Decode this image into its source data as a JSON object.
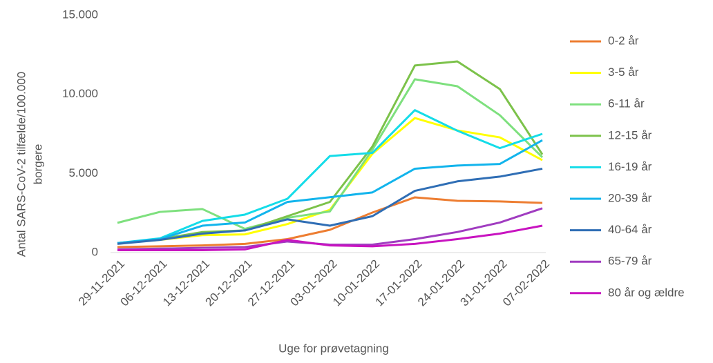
{
  "chart_data": {
    "type": "line",
    "x_label": "Uge for prøvetagning",
    "y_label": [
      "Antal SARS-CoV-2 tilfælde/100.000",
      "borgere"
    ],
    "categories": [
      "29-11-2021",
      "06-12-2021",
      "13-12-2021",
      "20-12-2021",
      "27-12-2021",
      "03-01-2022",
      "10-01-2022",
      "17-01-2022",
      "24-01-2022",
      "31-01-2022",
      "07-02-2022"
    ],
    "ylim": [
      0,
      15000
    ],
    "yticks": [
      0,
      {
        "value": 5000,
        "label": "5.000"
      },
      {
        "value": 10000,
        "label": "10.000"
      },
      {
        "value": 15000,
        "label": "15.000"
      }
    ],
    "series": [
      {
        "name": "0-2 år",
        "color": "#ed7d31",
        "values": [
          350,
          400,
          450,
          550,
          850,
          1440,
          2530,
          3490,
          3270,
          3230,
          3140
        ]
      },
      {
        "name": "3-5 år",
        "color": "#ffff00",
        "values": [
          600,
          800,
          1100,
          1150,
          1800,
          2700,
          6240,
          8500,
          7720,
          7280,
          5840
        ]
      },
      {
        "name": "6-11 år",
        "color": "#7ee07e",
        "values": [
          1880,
          2570,
          2750,
          1500,
          2200,
          2600,
          6500,
          10950,
          10510,
          8680,
          6020
        ]
      },
      {
        "name": "12-15 år",
        "color": "#7cc24a",
        "values": [
          600,
          850,
          1300,
          1400,
          2300,
          3200,
          6700,
          11820,
          12080,
          10330,
          6200
        ]
      },
      {
        "name": "16-19 år",
        "color": "#14dce8",
        "values": [
          600,
          900,
          2000,
          2400,
          3400,
          6100,
          6300,
          9000,
          7700,
          6600,
          7500
        ]
      },
      {
        "name": "20-39 år",
        "color": "#12b4ec",
        "values": [
          600,
          850,
          1700,
          1900,
          3200,
          3500,
          3800,
          5300,
          5500,
          5600,
          7100
        ]
      },
      {
        "name": "40-64 år",
        "color": "#2f6eb5",
        "values": [
          550,
          800,
          1200,
          1400,
          2100,
          1700,
          2300,
          3900,
          4500,
          4800,
          5300
        ]
      },
      {
        "name": "65-79 år",
        "color": "#a03cc0",
        "values": [
          200,
          250,
          300,
          350,
          700,
          500,
          500,
          850,
          1300,
          1900,
          2800
        ]
      },
      {
        "name": "80 år og ældre",
        "color": "#c814c0",
        "values": [
          150,
          150,
          150,
          200,
          800,
          450,
          400,
          550,
          850,
          1200,
          1700
        ]
      }
    ]
  }
}
